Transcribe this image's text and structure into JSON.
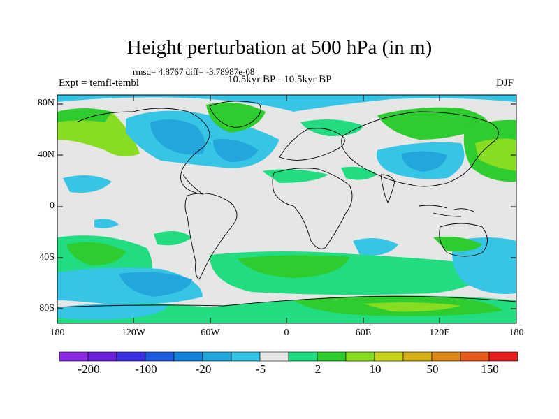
{
  "title": "Height perturbation at 500 hPa (in m)",
  "stats": "rmsd= 4.8767 diff= -3.78987e-08",
  "expt": "Expt = temfl-tembl",
  "period": "10.5kyr BP - 10.5kyr BP",
  "season": "DJF",
  "lat_labels": [
    "80N",
    "40N",
    "0",
    "40S",
    "80S"
  ],
  "lon_labels": [
    "180",
    "120W",
    "60W",
    "0",
    "60E",
    "120E",
    "180"
  ],
  "colorbar": {
    "colors": [
      "#8a2be2",
      "#6a1fd9",
      "#3a2fdf",
      "#1e5bdc",
      "#1480d8",
      "#22a6dc",
      "#37c5e6",
      "#e6e6e6",
      "#22dc82",
      "#2ecc2e",
      "#88dd22",
      "#c8d41c",
      "#d6b21a",
      "#dc8a1a",
      "#e65a1c",
      "#e41e1e"
    ],
    "labels": [
      "-200",
      "-100",
      "-20",
      "-5",
      "2",
      "10",
      "50",
      "150"
    ]
  }
}
